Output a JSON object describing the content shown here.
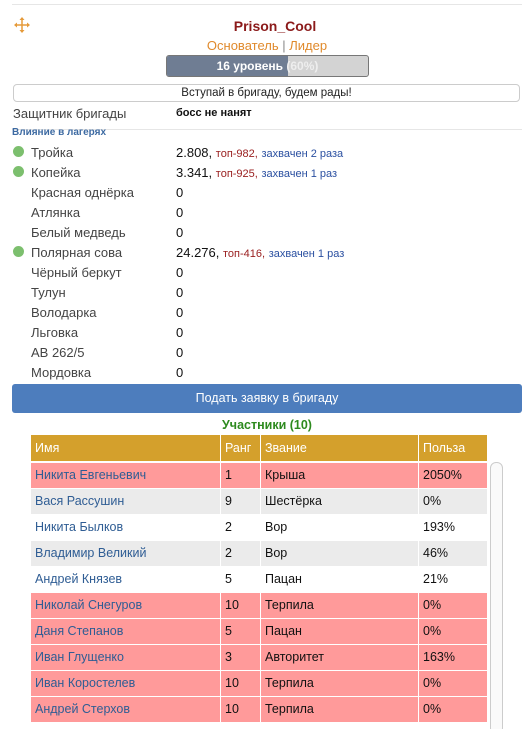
{
  "header": {
    "name": "Prison_Cool",
    "roles": [
      "Основатель",
      "Лидер"
    ],
    "separator": "|",
    "level_label": "16 уровень",
    "progress": {
      "value": 60,
      "label": "(60%)"
    }
  },
  "invite": "Вступай в бригаду, будем рады!",
  "defender": {
    "label": "Защитник бригады",
    "value": "босс не нанят"
  },
  "influence": {
    "title": "Влияние в лагерях",
    "camps": [
      {
        "name": "Тройка",
        "value": "2.808,",
        "top": "топ-982,",
        "captured": "захвачен 2 раза",
        "marker": true
      },
      {
        "name": "Копейка",
        "value": "3.341,",
        "top": "топ-925,",
        "captured": "захвачен 1 раз",
        "marker": true
      },
      {
        "name": "Красная однёрка",
        "value": "0",
        "marker": false
      },
      {
        "name": "Атлянка",
        "value": "0",
        "marker": false
      },
      {
        "name": "Белый медведь",
        "value": "0",
        "marker": false
      },
      {
        "name": "Полярная сова",
        "value": "24.276,",
        "top": "топ-416,",
        "captured": "захвачен 1 раз",
        "marker": true
      },
      {
        "name": "Чёрный беркут",
        "value": "0",
        "marker": false
      },
      {
        "name": "Тулун",
        "value": "0",
        "marker": false
      },
      {
        "name": "Володарка",
        "value": "0",
        "marker": false
      },
      {
        "name": "Льговка",
        "value": "0",
        "marker": false
      },
      {
        "name": "АВ 262/5",
        "value": "0",
        "marker": false
      },
      {
        "name": "Мордовка",
        "value": "0",
        "marker": false
      }
    ]
  },
  "apply_button": "Подать заявку в бригаду",
  "members": {
    "title": "Участники (10)",
    "columns": [
      "Имя",
      "Ранг",
      "Звание",
      "Польза"
    ],
    "rows": [
      {
        "cells": [
          "Никита Евгеньевич",
          "1",
          "Крыша",
          "2050%"
        ],
        "highlight": true
      },
      {
        "cells": [
          "Вася Рассушин",
          "9",
          "Шестёрка",
          "0%"
        ],
        "highlight": false
      },
      {
        "cells": [
          "Никита Былков",
          "2",
          "Вор",
          "193%"
        ],
        "highlight": false
      },
      {
        "cells": [
          "Владимир Великий",
          "2",
          "Вор",
          "46%"
        ],
        "highlight": false
      },
      {
        "cells": [
          "Андрей Князев",
          "5",
          "Пацан",
          "21%"
        ],
        "highlight": false
      },
      {
        "cells": [
          "Николай Снегуров",
          "10",
          "Терпила",
          "0%"
        ],
        "highlight": true
      },
      {
        "cells": [
          "Даня Степанов",
          "5",
          "Пацан",
          "0%"
        ],
        "highlight": true
      },
      {
        "cells": [
          "Иван Глущенко",
          "3",
          "Авторитет",
          "163%"
        ],
        "highlight": true
      },
      {
        "cells": [
          "Иван Коростелев",
          "10",
          "Терпила",
          "0%"
        ],
        "highlight": true
      },
      {
        "cells": [
          "Андрей Стерхов",
          "10",
          "Терпила",
          "0%"
        ],
        "highlight": true
      }
    ]
  }
}
